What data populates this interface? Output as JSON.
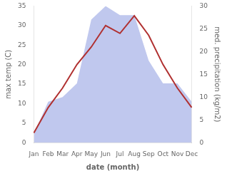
{
  "chart_data": {
    "type": "line",
    "categories": [
      "Jan",
      "Feb",
      "Mar",
      "Apr",
      "May",
      "Jun",
      "Jul",
      "Aug",
      "Sep",
      "Oct",
      "Nov",
      "Dec"
    ],
    "series": [
      {
        "type": "area",
        "axis": "y2",
        "color": "#c0c8ee",
        "values": [
          2,
          9,
          10,
          13,
          27,
          30,
          28,
          28,
          18,
          13,
          13,
          9
        ]
      },
      {
        "type": "line",
        "axis": "y",
        "color": "#b03030",
        "values": [
          2.5,
          9.0,
          14.0,
          20.0,
          24.5,
          30.0,
          28.0,
          32.5,
          27.5,
          20.0,
          14.0,
          9.0
        ]
      }
    ],
    "xlabel": "date (month)",
    "ylabel": "max temp (C)",
    "y2label": "med. precipitation (kg/m2)",
    "ylim": [
      0,
      35
    ],
    "yticks": [
      0,
      5,
      10,
      15,
      20,
      25,
      30,
      35
    ],
    "y2lim": [
      0,
      30
    ],
    "y2ticks": [
      0,
      5,
      10,
      15,
      20,
      25,
      30
    ],
    "grid": false
  }
}
